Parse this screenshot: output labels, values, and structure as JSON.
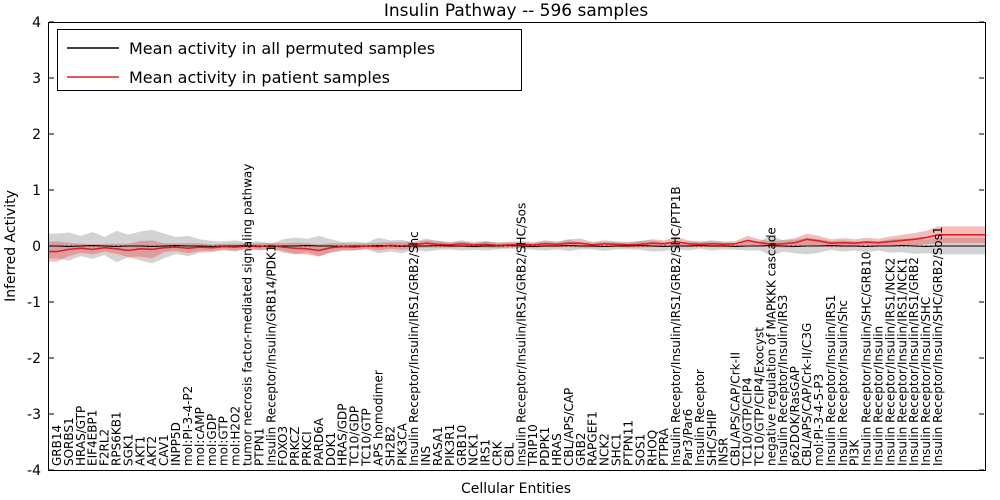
{
  "figure": {
    "title": "Insulin Pathway -- 596 samples",
    "xlabel": "Cellular Entities",
    "ylabel": "Inferred Activity"
  },
  "legend": {
    "entries": [
      {
        "label": "Mean activity in all permuted samples",
        "color": "#000000"
      },
      {
        "label": "Mean activity in patient samples",
        "color": "#e02020"
      }
    ]
  },
  "chart_data": {
    "type": "line",
    "title": "Insulin Pathway -- 596 samples",
    "xlabel": "Cellular Entities",
    "ylabel": "Inferred Activity",
    "ylim": [
      -4,
      4
    ],
    "yticks": [
      -4,
      -3,
      -2,
      -1,
      0,
      1,
      2,
      3,
      4
    ],
    "grid": false,
    "zero_line": true,
    "legend_position": "upper left",
    "categories": [
      "GRB14",
      "SORBS1",
      "HRAS/GTP",
      "EIF4EBP1",
      "F2RL2",
      "RPS6KB1",
      "SGK1",
      "AKT1",
      "AKT2",
      "CAV1",
      "INPP5D",
      "mol:PI-3-4-P2",
      "mol:cAMP",
      "mol:GDP",
      "mol:GTP",
      "mol:H2O2",
      "tumor necrosis factor-mediated signaling pathway",
      "PTPN1",
      "Insulin Receptor/Insulin/GRB14/PDK1",
      "FOXO3",
      "PRKCZ",
      "PRKCI",
      "PARD6A",
      "DOK1",
      "HRAS/GDP",
      "TC10/GDP",
      "TC10/GTP",
      "APS homodimer",
      "SH2B2",
      "PIK3CA",
      "Insulin Receptor/Insulin/IRS1/GRB2/Shc",
      "INS",
      "RASA1",
      "PIK3R1",
      "GRB10",
      "NCK1",
      "IRS1",
      "CRK",
      "CBL",
      "Insulin Receptor/Insulin/IRS1/GRB2/SHC/Sos",
      "TRIP10",
      "PDPK1",
      "HRAS",
      "CBL/APS/CAP",
      "GRB2",
      "RAPGEF1",
      "NCK2",
      "SHC1",
      "PTPN11",
      "SOS1",
      "RHOQ",
      "PTPRA",
      "Insulin Receptor/Insulin/IRS1/GRB2/SHC/PTP1B",
      "Par3/Par6",
      "Insulin Receptor",
      "SHC/SHIP",
      "INSR",
      "CBL/APS/CAP/Crk-II",
      "TC10/GTP/CIP4",
      "TC10/GTP/CIP4/Exocyst",
      "negative regulation of MAPKKK cascade",
      "Insulin Receptor/Insulin/IRS3",
      "p62DOK/RasGAP",
      "CBL/APS/CAP/Crk-II/C3G",
      "mol:PI-3-4-5-P3",
      "Insulin Receptor/Insulin/IRS1",
      "Insulin Receptor/Insulin/Shc",
      "PI3K",
      "Insulin Receptor/Insulin/SHC/GRB10",
      "Insulin Receptor/Insulin",
      "Insulin Receptor/Insulin/IRS1/NCK2",
      "Insulin Receptor/Insulin/IRS1/NCK1",
      "Insulin Receptor/Insulin/IRS1/GRB2",
      "Insulin Receptor/Insulin/SHC",
      "Insulin Receptor/Insulin/SHC/GRB2/Sos1"
    ],
    "series": [
      {
        "key": "permuted",
        "name": "Mean activity in all permuted samples",
        "color": "#000000",
        "band_color": "rgba(110,110,110,0.30)",
        "line_width": 1,
        "values": [
          0,
          -0.01,
          0,
          0.01,
          0,
          -0.01,
          0,
          0,
          -0.01,
          0,
          0.01,
          0,
          0,
          -0.01,
          0,
          0,
          0.01,
          0,
          -0.01,
          0,
          0,
          0.01,
          0,
          0,
          -0.01,
          0,
          0,
          0.01,
          0,
          -0.01,
          0,
          0,
          0.01,
          0,
          0,
          -0.01,
          0,
          0,
          0.01,
          0,
          -0.01,
          0,
          0,
          0.01,
          0,
          0,
          -0.01,
          0,
          0,
          0.01,
          0,
          -0.01,
          0,
          0,
          0.01,
          0,
          0,
          -0.01,
          0,
          0,
          0.01,
          0,
          -0.01,
          0,
          0,
          0.01,
          0,
          0,
          -0.01,
          0,
          0,
          0.01,
          0,
          -0.01,
          0
        ],
        "band": [
          0.22,
          0.25,
          0.18,
          0.24,
          0.16,
          0.28,
          0.2,
          0.26,
          0.3,
          0.22,
          0.15,
          0.18,
          0.12,
          0.1,
          0.08,
          0.1,
          0.06,
          0.08,
          0.05,
          0.12,
          0.15,
          0.12,
          0.18,
          0.12,
          0.08,
          0.08,
          0.06,
          0.14,
          0.1,
          0.12,
          0.06,
          0.1,
          0.08,
          0.06,
          0.08,
          0.06,
          0.08,
          0.06,
          0.06,
          0.05,
          0.06,
          0.08,
          0.06,
          0.1,
          0.06,
          0.06,
          0.08,
          0.06,
          0.06,
          0.08,
          0.1,
          0.08,
          0.06,
          0.08,
          0.06,
          0.08,
          0.06,
          0.06,
          0.08,
          0.08,
          0.18,
          0.1,
          0.12,
          0.15,
          0.12,
          0.08,
          0.1,
          0.08,
          0.1,
          0.08,
          0.12,
          0.12,
          0.14,
          0.12,
          0.15
        ]
      },
      {
        "key": "patient",
        "name": "Mean activity in patient samples",
        "color": "#e02020",
        "band_color": "rgba(235,60,60,0.35)",
        "line_width": 1.6,
        "values": [
          -0.1,
          -0.06,
          -0.04,
          -0.06,
          -0.03,
          -0.05,
          -0.08,
          -0.05,
          -0.06,
          -0.03,
          -0.02,
          -0.04,
          -0.02,
          -0.03,
          -0.01,
          -0.02,
          0.0,
          -0.01,
          0.01,
          -0.02,
          -0.04,
          -0.05,
          -0.08,
          -0.03,
          -0.01,
          -0.02,
          0.0,
          -0.01,
          0.01,
          0.0,
          0.02,
          0.05,
          0.03,
          0.02,
          0.04,
          0.02,
          0.03,
          0.01,
          0.02,
          0.03,
          0.02,
          0.04,
          0.03,
          0.05,
          0.05,
          0.02,
          0.04,
          0.03,
          0.02,
          0.03,
          0.05,
          0.04,
          0.08,
          0.04,
          0.03,
          0.04,
          0.03,
          0.04,
          0.1,
          0.06,
          0.03,
          0.04,
          0.06,
          0.12,
          0.09,
          0.05,
          0.06,
          0.05,
          0.07,
          0.06,
          0.08,
          0.1,
          0.12,
          0.15,
          0.2
        ],
        "band": [
          0.18,
          0.12,
          0.08,
          0.09,
          0.07,
          0.09,
          0.12,
          0.14,
          0.16,
          0.08,
          0.07,
          0.09,
          0.07,
          0.06,
          0.05,
          0.06,
          0.05,
          0.06,
          0.05,
          0.07,
          0.1,
          0.1,
          0.11,
          0.08,
          0.06,
          0.06,
          0.05,
          0.07,
          0.06,
          0.07,
          0.06,
          0.08,
          0.06,
          0.05,
          0.06,
          0.05,
          0.06,
          0.05,
          0.05,
          0.06,
          0.05,
          0.06,
          0.05,
          0.07,
          0.08,
          0.05,
          0.06,
          0.05,
          0.05,
          0.06,
          0.07,
          0.06,
          0.09,
          0.06,
          0.05,
          0.06,
          0.05,
          0.05,
          0.08,
          0.06,
          0.05,
          0.07,
          0.08,
          0.1,
          0.09,
          0.07,
          0.08,
          0.07,
          0.08,
          0.07,
          0.09,
          0.1,
          0.11,
          0.12,
          0.15
        ]
      }
    ]
  }
}
